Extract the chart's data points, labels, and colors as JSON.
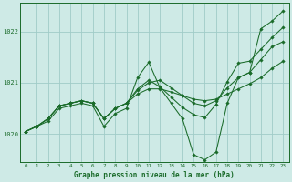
{
  "title": "Graphe pression niveau de la mer (hPa)",
  "xlabel": "Graphe pression niveau de la mer (hPa)",
  "background_color": "#ceeae6",
  "grid_color": "#a0ccc8",
  "line_color": "#1a6b2a",
  "ylim": [
    1019.45,
    1022.55
  ],
  "xlim": [
    -0.5,
    23.5
  ],
  "yticks": [
    1020,
    1021,
    1022
  ],
  "xticks": [
    0,
    1,
    2,
    3,
    4,
    5,
    6,
    7,
    8,
    9,
    10,
    11,
    12,
    13,
    14,
    15,
    16,
    17,
    18,
    19,
    20,
    21,
    22,
    23
  ],
  "series": [
    [
      1020.05,
      1020.15,
      1020.25,
      1020.5,
      1020.55,
      1020.6,
      1020.55,
      1020.15,
      1020.4,
      1020.5,
      1021.1,
      1021.4,
      1020.9,
      1020.6,
      1020.3,
      1019.6,
      1019.5,
      1019.65,
      1020.6,
      1021.1,
      1021.2,
      1022.05,
      1022.2,
      1022.4
    ],
    [
      1020.05,
      1020.15,
      1020.3,
      1020.55,
      1020.6,
      1020.65,
      1020.6,
      1020.3,
      1020.5,
      1020.6,
      1020.85,
      1021.0,
      1021.05,
      1020.9,
      1020.75,
      1020.6,
      1020.55,
      1020.65,
      1020.9,
      1021.1,
      1021.2,
      1021.45,
      1021.7,
      1021.8
    ],
    [
      1020.05,
      1020.15,
      1020.3,
      1020.55,
      1020.6,
      1020.65,
      1020.6,
      1020.3,
      1020.5,
      1020.6,
      1020.78,
      1020.88,
      1020.88,
      1020.82,
      1020.75,
      1020.68,
      1020.65,
      1020.68,
      1020.78,
      1020.88,
      1020.98,
      1021.1,
      1021.28,
      1021.42
    ],
    [
      1020.05,
      1020.15,
      1020.3,
      1020.55,
      1020.6,
      1020.65,
      1020.6,
      1020.3,
      1020.5,
      1020.6,
      1020.88,
      1021.05,
      1020.92,
      1020.72,
      1020.52,
      1020.38,
      1020.32,
      1020.58,
      1021.02,
      1021.38,
      1021.42,
      1021.65,
      1021.88,
      1022.08
    ]
  ]
}
